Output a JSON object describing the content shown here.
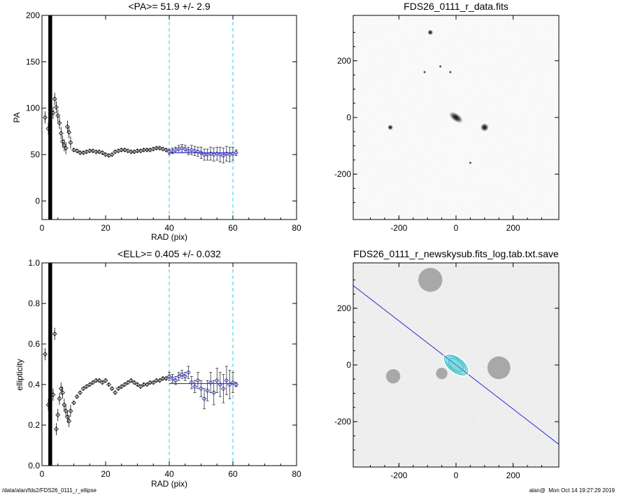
{
  "footer": {
    "left": "/data/alan/fds2/FDS26_0111_r_ellipse",
    "right": "alan@  Mon Oct 14 19:27:29 2019"
  },
  "colors": {
    "data": "#000000",
    "fit": "#3333cc",
    "fit_region": "#22d3e6",
    "image_line": "#2a2ad6",
    "isophote": "#22c1c8"
  },
  "chart_data": [
    {
      "type": "scatter",
      "title": "<PA>=  51.9 +/-   2.9",
      "xlabel": "RAD (pix)",
      "ylabel": "PA",
      "xlim": [
        0,
        80
      ],
      "ylim": [
        -20,
        200
      ],
      "xticks": [
        0,
        20,
        40,
        60,
        80
      ],
      "yticks": [
        0,
        50,
        100,
        150,
        200
      ],
      "fit_range": [
        40,
        60
      ],
      "mean": 51.9,
      "inner_points": [
        [
          1,
          90
        ],
        [
          2,
          78
        ],
        [
          3.5,
          95
        ],
        [
          4,
          110
        ],
        [
          4.5,
          101
        ],
        [
          5,
          92
        ],
        [
          5.5,
          84
        ],
        [
          6,
          73
        ],
        [
          6.5,
          64
        ],
        [
          7,
          60
        ],
        [
          7.5,
          57
        ],
        [
          8,
          80
        ],
        [
          8.5,
          74
        ],
        [
          9,
          63
        ]
      ],
      "points": [
        [
          10,
          55
        ],
        [
          11,
          54
        ],
        [
          12,
          52
        ],
        [
          13,
          52
        ],
        [
          14,
          53
        ],
        [
          15,
          54
        ],
        [
          16,
          54
        ],
        [
          17,
          53
        ],
        [
          18,
          53
        ],
        [
          19,
          52
        ],
        [
          20,
          50
        ],
        [
          21,
          49
        ],
        [
          22,
          50
        ],
        [
          23,
          53
        ],
        [
          24,
          54
        ],
        [
          25,
          55
        ],
        [
          26,
          55
        ],
        [
          27,
          54
        ],
        [
          28,
          53
        ],
        [
          29,
          53
        ],
        [
          30,
          54
        ],
        [
          31,
          54
        ],
        [
          32,
          55
        ],
        [
          33,
          55
        ],
        [
          34,
          55
        ],
        [
          35,
          56
        ],
        [
          36,
          57
        ],
        [
          37,
          57
        ],
        [
          38,
          56
        ],
        [
          39,
          55
        ]
      ],
      "fit_points": [
        [
          40,
          53
        ],
        [
          41,
          54
        ],
        [
          42,
          55
        ],
        [
          43,
          56
        ],
        [
          44,
          57
        ],
        [
          45,
          56
        ],
        [
          46,
          54
        ],
        [
          47,
          55
        ],
        [
          48,
          54
        ],
        [
          49,
          53
        ],
        [
          50,
          52
        ],
        [
          51,
          50
        ],
        [
          52,
          50
        ],
        [
          53,
          51
        ],
        [
          54,
          50
        ],
        [
          55,
          51
        ],
        [
          56,
          50
        ],
        [
          57,
          49
        ],
        [
          58,
          51
        ],
        [
          59,
          50
        ],
        [
          60,
          51
        ],
        [
          61,
          52
        ]
      ],
      "fit_errors": [
        3,
        3,
        3,
        4,
        4,
        4,
        4,
        5,
        5,
        5,
        6,
        6,
        6,
        7,
        7,
        7,
        8,
        8,
        8,
        8,
        7,
        3
      ],
      "mask_band": [
        2,
        3.2
      ]
    },
    {
      "type": "scatter",
      "title": "<ELL>= 0.405 +/-  0.032",
      "xlabel": "RAD (pix)",
      "ylabel": "ellipticity",
      "xlim": [
        0,
        80
      ],
      "ylim": [
        0,
        1
      ],
      "xticks": [
        0,
        20,
        40,
        60,
        80
      ],
      "yticks": [
        "0.0",
        "0.2",
        "0.4",
        "0.6",
        "0.8",
        "1.0"
      ],
      "fit_range": [
        40,
        60
      ],
      "mean": 0.405,
      "inner_points": [
        [
          1,
          0.55
        ],
        [
          2,
          0.3
        ],
        [
          3.5,
          0.35
        ],
        [
          4,
          0.65
        ],
        [
          4.5,
          0.18
        ],
        [
          5,
          0.25
        ],
        [
          5.5,
          0.33
        ],
        [
          6,
          0.38
        ],
        [
          6.5,
          0.36
        ],
        [
          7,
          0.3
        ],
        [
          7.5,
          0.27
        ],
        [
          8,
          0.24
        ],
        [
          8.5,
          0.22
        ],
        [
          9,
          0.27
        ]
      ],
      "points": [
        [
          10,
          0.31
        ],
        [
          11,
          0.34
        ],
        [
          12,
          0.36
        ],
        [
          13,
          0.38
        ],
        [
          14,
          0.39
        ],
        [
          15,
          0.4
        ],
        [
          16,
          0.41
        ],
        [
          17,
          0.42
        ],
        [
          18,
          0.42
        ],
        [
          19,
          0.41
        ],
        [
          20,
          0.42
        ],
        [
          21,
          0.4
        ],
        [
          22,
          0.38
        ],
        [
          23,
          0.36
        ],
        [
          24,
          0.38
        ],
        [
          25,
          0.39
        ],
        [
          26,
          0.4
        ],
        [
          27,
          0.41
        ],
        [
          28,
          0.42
        ],
        [
          29,
          0.41
        ],
        [
          30,
          0.4
        ],
        [
          31,
          0.39
        ],
        [
          32,
          0.4
        ],
        [
          33,
          0.4
        ],
        [
          34,
          0.41
        ],
        [
          35,
          0.41
        ],
        [
          36,
          0.42
        ],
        [
          37,
          0.42
        ],
        [
          38,
          0.43
        ],
        [
          39,
          0.43
        ]
      ],
      "fit_points": [
        [
          40,
          0.44
        ],
        [
          41,
          0.43
        ],
        [
          42,
          0.42
        ],
        [
          43,
          0.44
        ],
        [
          44,
          0.45
        ],
        [
          45,
          0.44
        ],
        [
          46,
          0.46
        ],
        [
          47,
          0.41
        ],
        [
          48,
          0.39
        ],
        [
          49,
          0.42
        ],
        [
          50,
          0.38
        ],
        [
          51,
          0.33
        ],
        [
          52,
          0.37
        ],
        [
          53,
          0.41
        ],
        [
          54,
          0.36
        ],
        [
          55,
          0.42
        ],
        [
          56,
          0.4
        ],
        [
          57,
          0.38
        ],
        [
          58,
          0.42
        ],
        [
          59,
          0.4
        ],
        [
          60,
          0.41
        ],
        [
          61,
          0.4
        ]
      ],
      "fit_errors": [
        0.02,
        0.02,
        0.02,
        0.02,
        0.02,
        0.02,
        0.03,
        0.03,
        0.03,
        0.04,
        0.04,
        0.05,
        0.05,
        0.05,
        0.06,
        0.06,
        0.06,
        0.07,
        0.07,
        0.07,
        0.05,
        0.01
      ],
      "mask_band": [
        2,
        3.2
      ]
    },
    {
      "type": "heatmap",
      "title": "FDS26_0111_r_data.fits",
      "xlim": [
        -360,
        360
      ],
      "ylim": [
        -360,
        360
      ],
      "xticks": [
        "-200",
        "0",
        "200"
      ],
      "yticks": [
        "200",
        "0",
        "-200"
      ],
      "sources": [
        [
          -90,
          300,
          10
        ],
        [
          -110,
          160,
          5
        ],
        [
          -55,
          180,
          5
        ],
        [
          -20,
          160,
          5
        ],
        [
          0,
          0,
          24
        ],
        [
          100,
          -35,
          15
        ],
        [
          -230,
          -35,
          10
        ],
        [
          50,
          -160,
          5
        ]
      ]
    },
    {
      "type": "heatmap",
      "title": "FDS26_0111_r_newskysub.fits_log.tab.txt.save",
      "xlim": [
        -360,
        360
      ],
      "ylim": [
        -360,
        360
      ],
      "xticks": [
        "-200",
        "0",
        "200"
      ],
      "yticks": [
        "200",
        "0",
        "-200"
      ],
      "masked_regions": [
        [
          -90,
          300,
          42
        ],
        [
          150,
          -10,
          40
        ],
        [
          -50,
          -30,
          20
        ],
        [
          -220,
          -40,
          25
        ]
      ],
      "line": [
        [
          -360,
          280
        ],
        [
          360,
          -280
        ]
      ],
      "isophote_center": [
        0,
        0
      ]
    }
  ]
}
